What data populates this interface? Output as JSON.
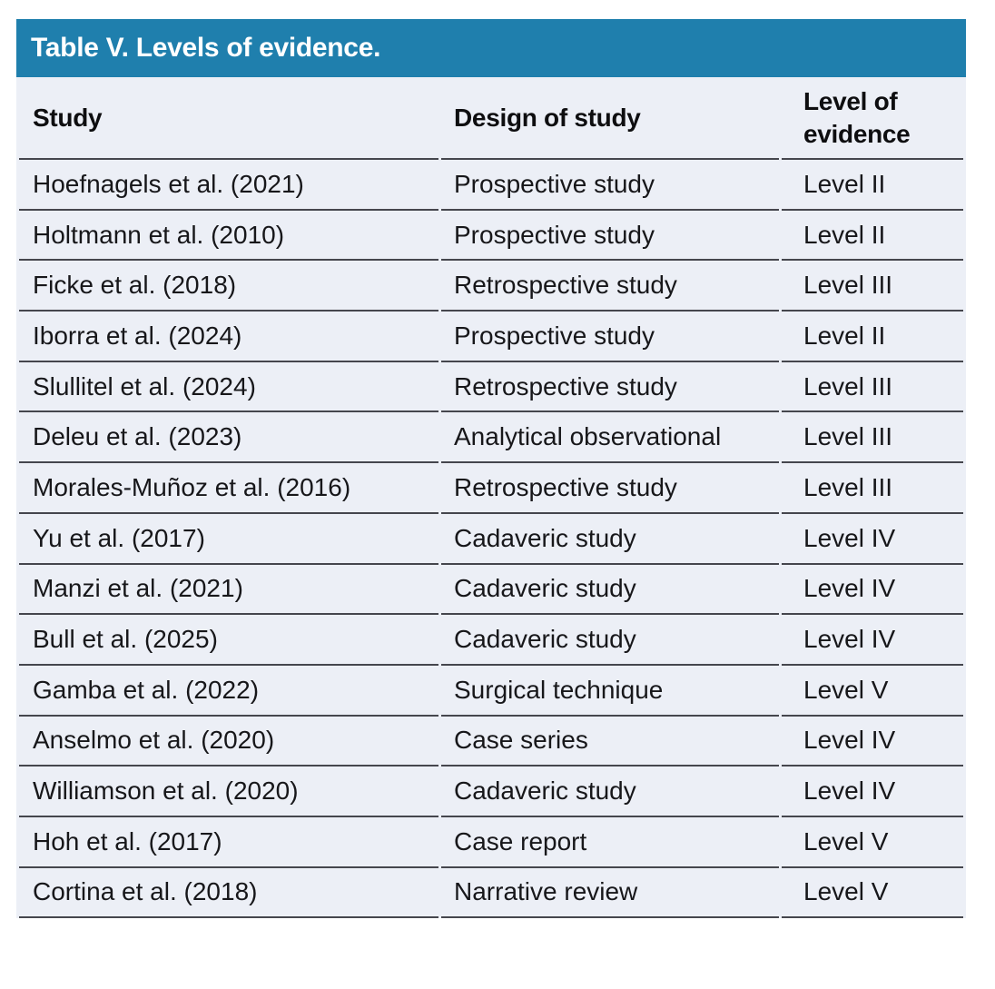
{
  "table": {
    "title": "Table V. Levels of evidence.",
    "columns": {
      "study": "Study",
      "design": "Design of study",
      "level": "Level of evidence"
    },
    "rows": [
      {
        "study": "Hoefnagels et al. (2021)",
        "design": "Prospective study",
        "level": "Level II"
      },
      {
        "study": "Holtmann et al. (2010)",
        "design": "Prospective study",
        "level": "Level II"
      },
      {
        "study": "Ficke et al. (2018)",
        "design": "Retrospective study",
        "level": "Level III"
      },
      {
        "study": "Iborra et al. (2024)",
        "design": "Prospective study",
        "level": "Level II"
      },
      {
        "study": "Slullitel et al. (2024)",
        "design": "Retrospective study",
        "level": "Level III"
      },
      {
        "study": "Deleu et al. (2023)",
        "design": "Analytical observational",
        "level": "Level III"
      },
      {
        "study": "Morales-Muñoz et al. (2016)",
        "design": "Retrospective study",
        "level": "Level III"
      },
      {
        "study": "Yu et al. (2017)",
        "design": "Cadaveric study",
        "level": "Level IV"
      },
      {
        "study": "Manzi et al. (2021)",
        "design": "Cadaveric study",
        "level": "Level IV"
      },
      {
        "study": "Bull et al. (2025)",
        "design": "Cadaveric study",
        "level": "Level IV"
      },
      {
        "study": "Gamba et al. (2022)",
        "design": "Surgical technique",
        "level": "Level V"
      },
      {
        "study": "Anselmo et al. (2020)",
        "design": "Case series",
        "level": "Level IV"
      },
      {
        "study": "Williamson et al. (2020)",
        "design": "Cadaveric study",
        "level": "Level IV"
      },
      {
        "study": "Hoh et al. (2017)",
        "design": "Case report",
        "level": "Level V"
      },
      {
        "study": "Cortina et al. (2018)",
        "design": "Narrative review",
        "level": "Level V"
      }
    ]
  },
  "colors": {
    "title_bar_bg": "#1f7fad",
    "title_text": "#ffffff",
    "table_bg": "#eceff6",
    "row_border": "#45464d",
    "body_text": "#17171a"
  }
}
